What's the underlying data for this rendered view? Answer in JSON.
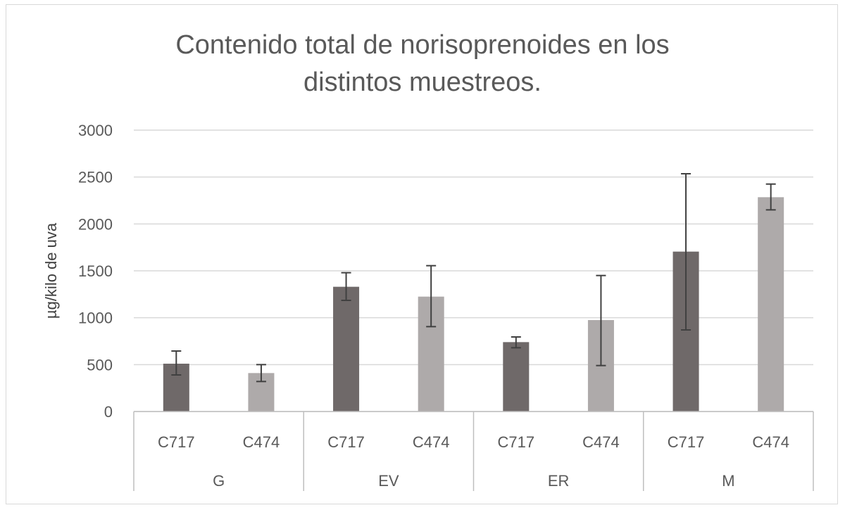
{
  "chart_data": {
    "type": "bar",
    "title_lines": [
      "Contenido total de norisoprenoides  en los",
      "distintos muestreos."
    ],
    "ylabel": "µg/kilo de uva",
    "xlabel": "",
    "ylim": [
      0,
      3000
    ],
    "yticks": [
      0,
      500,
      1000,
      1500,
      2000,
      2500,
      3000
    ],
    "grid": true,
    "legend": "none",
    "groups": [
      {
        "label": "G",
        "bars": [
          {
            "label": "C717",
            "value": 510,
            "err_low": 390,
            "err_high": 645,
            "color": "#6f6969"
          },
          {
            "label": "C474",
            "value": 410,
            "err_low": 320,
            "err_high": 500,
            "color": "#aeaaaa"
          }
        ]
      },
      {
        "label": "EV",
        "bars": [
          {
            "label": "C717",
            "value": 1330,
            "err_low": 1185,
            "err_high": 1480,
            "color": "#6f6969"
          },
          {
            "label": "C474",
            "value": 1225,
            "err_low": 905,
            "err_high": 1555,
            "color": "#aeaaaa"
          }
        ]
      },
      {
        "label": "ER",
        "bars": [
          {
            "label": "C717",
            "value": 740,
            "err_low": 680,
            "err_high": 795,
            "color": "#6f6969"
          },
          {
            "label": "C474",
            "value": 975,
            "err_low": 490,
            "err_high": 1450,
            "color": "#aeaaaa"
          }
        ]
      },
      {
        "label": "M",
        "bars": [
          {
            "label": "C717",
            "value": 1705,
            "err_low": 870,
            "err_high": 2535,
            "color": "#6f6969"
          },
          {
            "label": "C474",
            "value": 2285,
            "err_low": 2150,
            "err_high": 2425,
            "color": "#aeaaaa"
          }
        ]
      }
    ]
  }
}
